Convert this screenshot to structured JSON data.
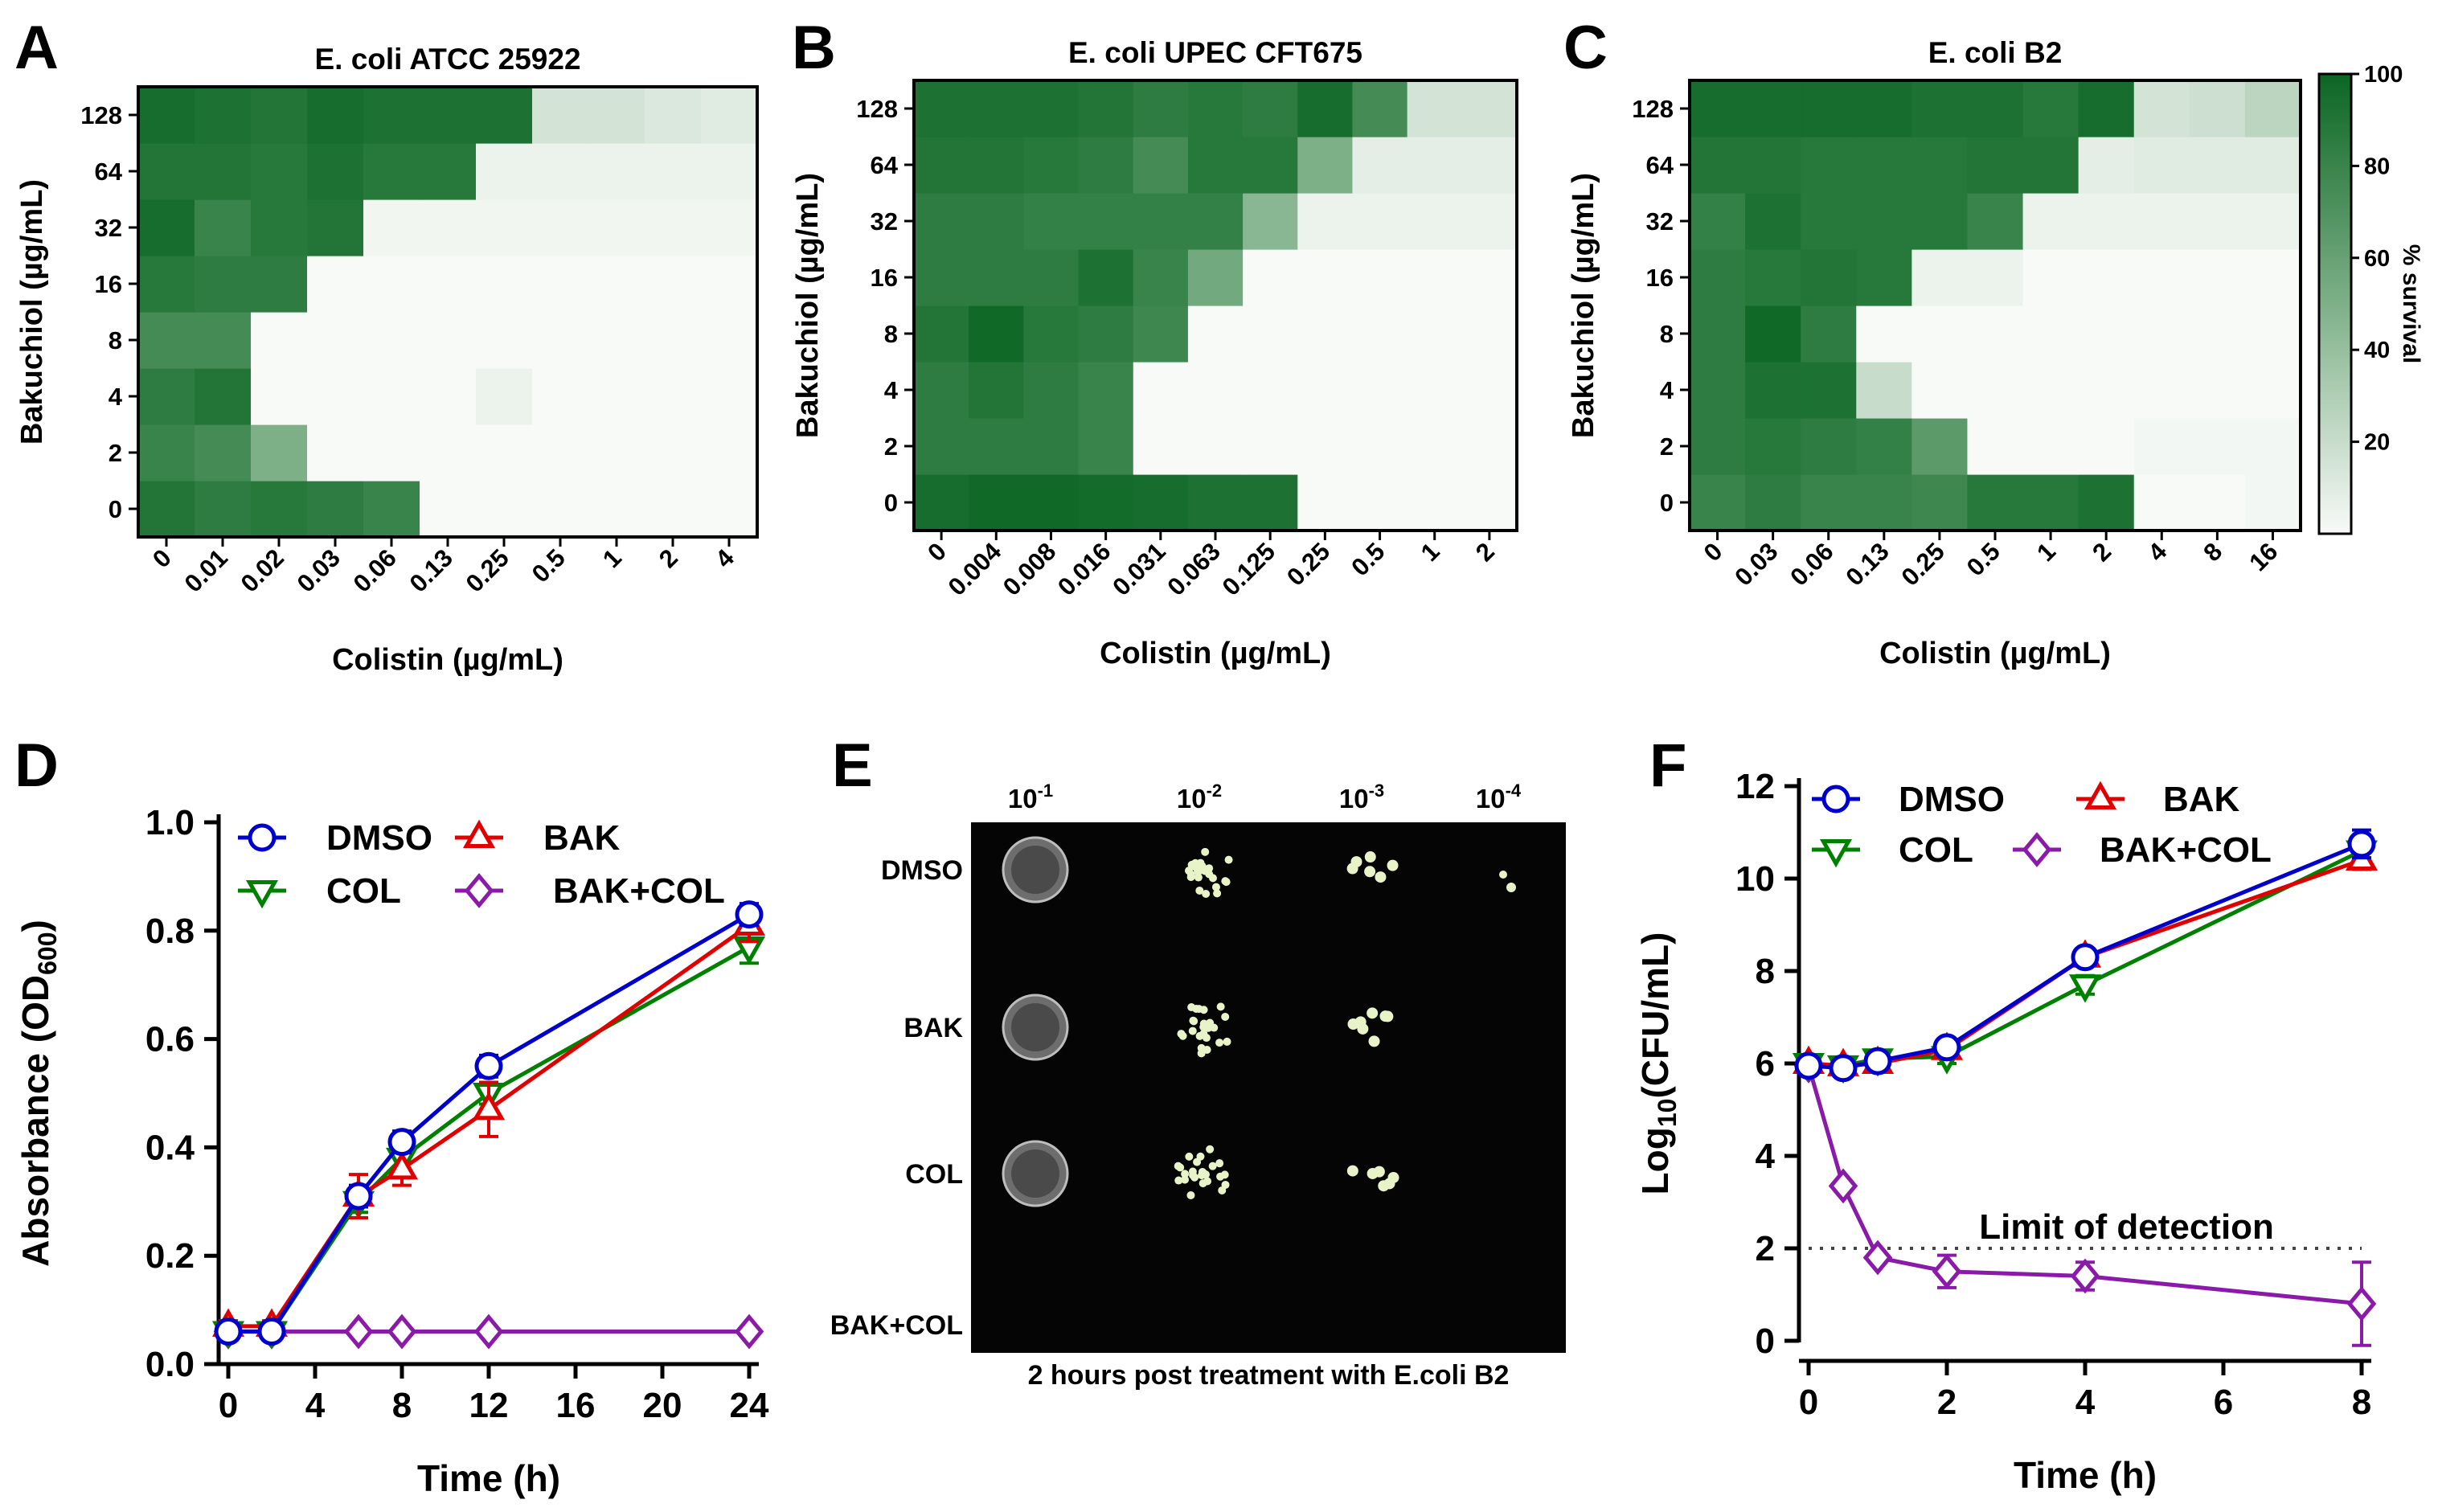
{
  "panel_letters": [
    "A",
    "B",
    "C",
    "D",
    "E",
    "F"
  ],
  "colors": {
    "dmso": "#0000CC",
    "bak": "#E00000",
    "col": "#008000",
    "bakcol": "#8A1AA8",
    "dark": "#0B6623",
    "light": "#FFFFFF"
  },
  "chart_data": [
    {
      "type": "heatmap",
      "title": "E. coli ATCC 25922",
      "xlabel": "Colistin (µg/mL)",
      "ylabel": "Bakuchiol (µg/mL)",
      "x": [
        "0",
        "0.01",
        "0.02",
        "0.03",
        "0.06",
        "0.13",
        "0.25",
        "0.5",
        "1",
        "2",
        "4"
      ],
      "y": [
        "0",
        "2",
        "4",
        "8",
        "16",
        "32",
        "64",
        "128"
      ],
      "values": [
        [
          90,
          85,
          88,
          85,
          80,
          0,
          0,
          0,
          0,
          0,
          0
        ],
        [
          80,
          75,
          50,
          0,
          0,
          0,
          0,
          0,
          0,
          0,
          0
        ],
        [
          85,
          90,
          0,
          0,
          0,
          0,
          5,
          0,
          0,
          0,
          0
        ],
        [
          75,
          75,
          0,
          0,
          0,
          0,
          0,
          0,
          0,
          0,
          0
        ],
        [
          88,
          85,
          85,
          0,
          0,
          0,
          0,
          0,
          0,
          0,
          0
        ],
        [
          95,
          80,
          88,
          90,
          3,
          3,
          3,
          3,
          3,
          3,
          3
        ],
        [
          90,
          90,
          88,
          92,
          88,
          88,
          5,
          5,
          5,
          5,
          5
        ],
        [
          95,
          92,
          90,
          95,
          92,
          92,
          92,
          15,
          15,
          12,
          10
        ]
      ]
    },
    {
      "type": "heatmap",
      "title": "E. coli UPEC CFT675",
      "xlabel": "Colistin (µg/mL)",
      "ylabel": "Bakuchiol (µg/mL)",
      "x": [
        "0",
        "0.004",
        "0.008",
        "0.016",
        "0.031",
        "0.063",
        "0.125",
        "0.25",
        "0.5",
        "1",
        "2"
      ],
      "y": [
        "0",
        "2",
        "4",
        "8",
        "16",
        "32",
        "64",
        "128"
      ],
      "values": [
        [
          95,
          98,
          98,
          96,
          95,
          92,
          92,
          0,
          0,
          0,
          0
        ],
        [
          85,
          85,
          85,
          80,
          0,
          0,
          0,
          0,
          0,
          0,
          0
        ],
        [
          85,
          90,
          85,
          80,
          0,
          0,
          0,
          0,
          0,
          0,
          0
        ],
        [
          90,
          98,
          88,
          85,
          78,
          0,
          0,
          0,
          0,
          0,
          0
        ],
        [
          85,
          85,
          85,
          92,
          80,
          55,
          0,
          0,
          0,
          0,
          0
        ],
        [
          85,
          85,
          82,
          82,
          82,
          82,
          45,
          5,
          5,
          5,
          5
        ],
        [
          90,
          90,
          88,
          85,
          75,
          88,
          88,
          50,
          8,
          8,
          8
        ],
        [
          92,
          92,
          92,
          90,
          85,
          88,
          85,
          95,
          75,
          15,
          15
        ]
      ]
    },
    {
      "type": "heatmap",
      "title": "E. coli B2",
      "xlabel": "Colistin (µg/mL)",
      "ylabel": "Bakuchiol (µg/mL)",
      "x": [
        "0",
        "0.03",
        "0.06",
        "0.13",
        "0.25",
        "0.5",
        "1",
        "2",
        "4",
        "8",
        "16"
      ],
      "y": [
        "0",
        "2",
        "4",
        "8",
        "16",
        "32",
        "64",
        "128"
      ],
      "values": [
        [
          80,
          85,
          80,
          80,
          78,
          88,
          88,
          92,
          0,
          0,
          2
        ],
        [
          85,
          88,
          85,
          82,
          65,
          0,
          0,
          0,
          2,
          2,
          2
        ],
        [
          85,
          92,
          92,
          20,
          0,
          0,
          0,
          0,
          0,
          0,
          0
        ],
        [
          85,
          98,
          85,
          0,
          0,
          0,
          0,
          0,
          0,
          0,
          0
        ],
        [
          85,
          88,
          90,
          88,
          5,
          5,
          0,
          0,
          0,
          0,
          0
        ],
        [
          82,
          92,
          88,
          88,
          88,
          80,
          5,
          5,
          5,
          5,
          5
        ],
        [
          90,
          90,
          88,
          88,
          88,
          90,
          90,
          8,
          10,
          10,
          10
        ],
        [
          95,
          95,
          95,
          95,
          92,
          92,
          88,
          95,
          15,
          18,
          25
        ]
      ]
    },
    {
      "type": "line",
      "xlabel": "Time (h)",
      "ylabel": "Absorbance (OD",
      "ylabel_sub": "600",
      "ylabel_end": ")",
      "xlim": [
        0,
        24
      ],
      "ylim": [
        0,
        1.0
      ],
      "xticks": [
        0,
        4,
        8,
        12,
        16,
        20,
        24
      ],
      "yticks": [
        "0.0",
        "0.2",
        "0.4",
        "0.6",
        "0.8",
        "1.0"
      ],
      "series": [
        {
          "name": "DMSO",
          "marker": "circle",
          "x": [
            0,
            2,
            6,
            8,
            12,
            24
          ],
          "y": [
            0.06,
            0.06,
            0.31,
            0.41,
            0.55,
            0.83
          ],
          "err": [
            0.01,
            0.01,
            0.02,
            0.02,
            0.02,
            0.02
          ]
        },
        {
          "name": "BAK",
          "marker": "triangle-up",
          "x": [
            0,
            2,
            6,
            8,
            12,
            24
          ],
          "y": [
            0.07,
            0.07,
            0.31,
            0.36,
            0.47,
            0.81
          ],
          "err": [
            0.01,
            0.01,
            0.04,
            0.03,
            0.05,
            0.03
          ]
        },
        {
          "name": "COL",
          "marker": "triangle-down",
          "x": [
            0,
            2,
            6,
            8,
            12,
            24
          ],
          "y": [
            0.06,
            0.06,
            0.3,
            0.38,
            0.5,
            0.77
          ],
          "err": [
            0.01,
            0.01,
            0.02,
            0.02,
            0.02,
            0.03
          ]
        },
        {
          "name": "BAK+COL",
          "marker": "diamond",
          "x": [
            0,
            2,
            6,
            8,
            12,
            24
          ],
          "y": [
            0.06,
            0.06,
            0.06,
            0.06,
            0.06,
            0.06
          ],
          "err": [
            0,
            0,
            0,
            0,
            0,
            0
          ]
        }
      ]
    },
    {
      "type": "image",
      "title": "2 hours post treatment with E.coli B2",
      "dilutions": [
        "10",
        "10",
        "10",
        "10"
      ],
      "dilution_exps": [
        "-1",
        "-2",
        "-3",
        "-4"
      ],
      "rows": [
        "DMSO",
        "BAK",
        "COL",
        "BAK+COL"
      ]
    },
    {
      "type": "line",
      "xlabel": "Time (h)",
      "ylabel": "Log",
      "ylabel_sub": "10",
      "ylabel_end": "(CFU/mL)",
      "xlim": [
        0,
        8
      ],
      "ylim": [
        0,
        12
      ],
      "xticks": [
        0,
        2,
        4,
        6,
        8
      ],
      "yticks": [
        "0",
        "2",
        "4",
        "6",
        "8",
        "10",
        "12"
      ],
      "annotation": "Limit of detection",
      "detection_limit": 2,
      "series": [
        {
          "name": "DMSO",
          "marker": "circle",
          "x": [
            0,
            0.5,
            1,
            2,
            4,
            8
          ],
          "y": [
            5.95,
            5.9,
            6.05,
            6.35,
            8.3,
            10.75
          ],
          "err": [
            0.1,
            0.1,
            0.1,
            0.1,
            0.15,
            0.3
          ]
        },
        {
          "name": "BAK",
          "marker": "triangle-up",
          "x": [
            0,
            0.5,
            1,
            2,
            4,
            8
          ],
          "y": [
            6.0,
            5.95,
            6.0,
            6.3,
            8.3,
            10.4
          ],
          "err": [
            0.1,
            0.1,
            0.1,
            0.1,
            0.15,
            0.2
          ]
        },
        {
          "name": "COL",
          "marker": "triangle-down",
          "x": [
            0,
            0.5,
            1,
            2,
            4,
            8
          ],
          "y": [
            6.0,
            5.95,
            6.1,
            6.15,
            7.7,
            10.6
          ],
          "err": [
            0.1,
            0.1,
            0.15,
            0.15,
            0.2,
            0.2
          ]
        },
        {
          "name": "BAK+COL",
          "marker": "diamond",
          "x": [
            0,
            0.5,
            1,
            2,
            4,
            8
          ],
          "y": [
            5.95,
            3.35,
            1.8,
            1.5,
            1.4,
            0.8
          ],
          "err": [
            0.1,
            0.1,
            0.1,
            0.35,
            0.3,
            0.9
          ]
        }
      ]
    }
  ],
  "colorbar": {
    "label": "% survival",
    "ticks": [
      "20",
      "40",
      "60",
      "80",
      "100"
    ],
    "min": 0,
    "max": 100
  }
}
